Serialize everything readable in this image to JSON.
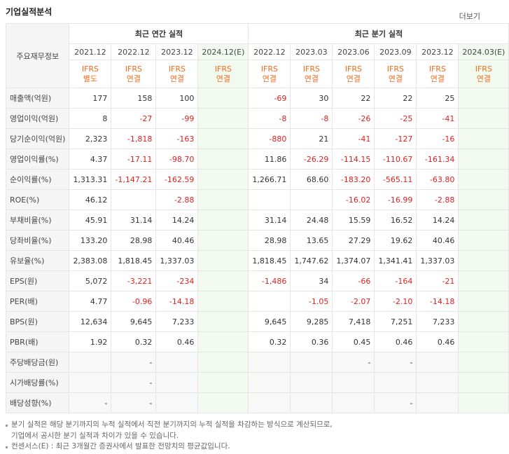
{
  "header": {
    "title": "기업실적분석",
    "more": "더보기"
  },
  "table": {
    "corner": "주요재무정보",
    "groups": [
      "최근 연간 실적",
      "최근 분기 실적"
    ],
    "periods": [
      "2021.12",
      "2022.12",
      "2023.12",
      "2024.12(E)",
      "2022.12",
      "2023.03",
      "2023.06",
      "2023.09",
      "2023.12",
      "2024.03(E)"
    ],
    "standards": [
      [
        "IFRS",
        "별도"
      ],
      [
        "IFRS",
        "연결"
      ],
      [
        "IFRS",
        "연결"
      ],
      [
        "IFRS",
        "연결"
      ],
      [
        "IFRS",
        "연결"
      ],
      [
        "IFRS",
        "연결"
      ],
      [
        "IFRS",
        "연결"
      ],
      [
        "IFRS",
        "연결"
      ],
      [
        "IFRS",
        "연결"
      ],
      [
        "IFRS",
        "연결"
      ]
    ],
    "rows": [
      {
        "label": "매출액(억원)",
        "values": [
          "177",
          "158",
          "100",
          null,
          "-69",
          "30",
          "22",
          "22",
          "25",
          null
        ]
      },
      {
        "label": "영업이익(억원)",
        "values": [
          "8",
          "-27",
          "-99",
          null,
          "-8",
          "-8",
          "-26",
          "-25",
          "-41",
          null
        ]
      },
      {
        "label": "당기순이익(억원)",
        "values": [
          "2,323",
          "-1,818",
          "-163",
          null,
          "-880",
          "21",
          "-41",
          "-127",
          "-16",
          null
        ]
      },
      {
        "label": "영업이익률(%)",
        "values": [
          "4.37",
          "-17.11",
          "-98.70",
          null,
          "11.86",
          "-26.29",
          "-114.15",
          "-110.67",
          "-161.34",
          null
        ]
      },
      {
        "label": "순이익률(%)",
        "values": [
          "1,313.31",
          "-1,147.21",
          "-162.59",
          null,
          "1,266.71",
          "68.60",
          "-183.20",
          "-565.11",
          "-63.80",
          null
        ]
      },
      {
        "label": "ROE(%)",
        "values": [
          "46.12",
          null,
          "-2.88",
          null,
          null,
          null,
          "-16.02",
          "-16.99",
          "-2.88",
          null
        ]
      },
      {
        "label": "부채비율(%)",
        "values": [
          "45.91",
          "31.14",
          "14.24",
          null,
          "31.14",
          "24.48",
          "15.59",
          "16.52",
          "14.24",
          null
        ]
      },
      {
        "label": "당좌비율(%)",
        "values": [
          "133.20",
          "28.98",
          "40.46",
          null,
          "28.98",
          "13.65",
          "27.29",
          "19.62",
          "40.46",
          null
        ]
      },
      {
        "label": "유보율(%)",
        "values": [
          "2,383.08",
          "1,818.45",
          "1,337.03",
          null,
          "1,818.45",
          "1,747.62",
          "1,374.07",
          "1,341.41",
          "1,337.03",
          null
        ]
      },
      {
        "label": "EPS(원)",
        "values": [
          "5,072",
          "-3,221",
          "-234",
          null,
          "-1,486",
          "34",
          "-66",
          "-164",
          "-21",
          null
        ]
      },
      {
        "label": "PER(배)",
        "values": [
          "4.77",
          "-0.96",
          "-14.18",
          null,
          null,
          "-1.05",
          "-2.07",
          "-2.10",
          "-14.18",
          null
        ]
      },
      {
        "label": "BPS(원)",
        "values": [
          "12,634",
          "9,645",
          "7,233",
          null,
          "9,645",
          "9,285",
          "7,418",
          "7,251",
          "7,233",
          null
        ]
      },
      {
        "label": "PBR(배)",
        "values": [
          "1.92",
          "0.32",
          "0.46",
          null,
          "0.32",
          "0.36",
          "0.45",
          "0.46",
          "0.46",
          null
        ]
      },
      {
        "label": "주당배당금(원)",
        "values": [
          null,
          "-",
          null,
          null,
          null,
          null,
          "-",
          "-",
          null,
          null
        ]
      },
      {
        "label": "시가배당률(%)",
        "values": [
          null,
          "-",
          null,
          null,
          null,
          null,
          null,
          null,
          null,
          null
        ]
      },
      {
        "label": "배당성향(%)",
        "values": [
          "-",
          "-",
          null,
          null,
          null,
          null,
          null,
          "-",
          null,
          null
        ]
      }
    ]
  },
  "notes": [
    [
      "분기 실적은 해당 분기까지의 누적 실적에서 직전 분기까지의 누적 실적을 차감하는 방식으로 계산되므로,",
      "기업에서 공시한 분기 실적과 차이가 있을 수 있습니다."
    ],
    [
      "컨센서스(E) : 최근 3개월간 증권사에서 발표한 전망치의 평균값입니다."
    ]
  ]
}
